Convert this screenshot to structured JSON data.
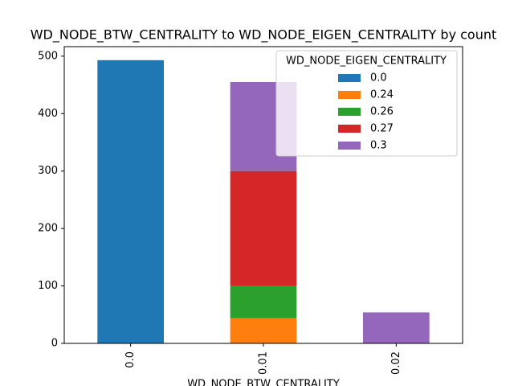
{
  "chart_data": {
    "type": "stacked_bar",
    "title": "WD_NODE_BTW_CENTRALITY to WD_NODE_EIGEN_CENTRALITY by count",
    "x_label": "WD_NODE_BTW_CENTRALITY",
    "legend_title": "WD_NODE_EIGEN_CENTRALITY",
    "legend_position": "upper right",
    "categories": [
      "0.0",
      "0.01",
      "0.02"
    ],
    "series": [
      {
        "name": "0.0",
        "color": "#1f77b4",
        "values": [
          493,
          0,
          0
        ]
      },
      {
        "name": "0.24",
        "color": "#ff7f0e",
        "values": [
          0,
          44,
          0
        ]
      },
      {
        "name": "0.26",
        "color": "#2ca02c",
        "values": [
          0,
          56,
          0
        ]
      },
      {
        "name": "0.27",
        "color": "#d62728",
        "values": [
          0,
          200,
          0
        ]
      },
      {
        "name": "0.3",
        "color": "#9467bd",
        "values": [
          0,
          155,
          54
        ]
      }
    ],
    "ylim": [
      0,
      516.6
    ],
    "yticks": [
      0,
      100,
      200,
      300,
      400,
      500
    ]
  }
}
